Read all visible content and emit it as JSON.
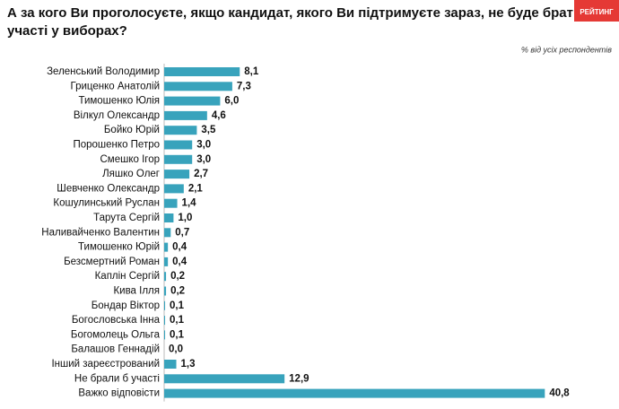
{
  "chart_data": {
    "type": "bar",
    "orientation": "horizontal",
    "title": [
      "А за кого Ви проголосуєте, якщо кандидат, якого Ви підтримуєте зараз, не буде брати",
      "участі у виборах?"
    ],
    "subtitle": "% від усіх респондентів",
    "logo": "РЕЙТИНГ",
    "color": "#38a3bc",
    "categories": [
      "Зеленський Володимир",
      "Гриценко Анатолій",
      "Тимошенко Юлія",
      "Вілкул Олександр",
      "Бойко Юрій",
      "Порошенко Петро",
      "Смешко Ігор",
      "Ляшко Олег",
      "Шевченко Олександр",
      "Кошулинський Руслан",
      "Тарута Сергій",
      "Наливайченко Валентин",
      "Тимошенко Юрій",
      "Безсмертний Роман",
      "Каплін Сергій",
      "Кива Ілля",
      "Бондар Віктор",
      "Богословська Інна",
      "Богомолець Ольга",
      "Балашов Геннадій",
      "Інший зареєстрований",
      "Не брали б участі",
      "Важко відповісти"
    ],
    "values": [
      8.1,
      7.3,
      6.0,
      4.6,
      3.5,
      3.0,
      3.0,
      2.7,
      2.1,
      1.4,
      1.0,
      0.7,
      0.4,
      0.4,
      0.2,
      0.2,
      0.1,
      0.1,
      0.1,
      0.0,
      1.3,
      12.9,
      40.8
    ],
    "value_labels": [
      "8,1",
      "7,3",
      "6,0",
      "4,6",
      "3,5",
      "3,0",
      "3,0",
      "2,7",
      "2,1",
      "1,4",
      "1,0",
      "0,7",
      "0,4",
      "0,4",
      "0,2",
      "0,2",
      "0,1",
      "0,1",
      "0,1",
      "0,0",
      "1,3",
      "12,9",
      "40,8"
    ]
  }
}
